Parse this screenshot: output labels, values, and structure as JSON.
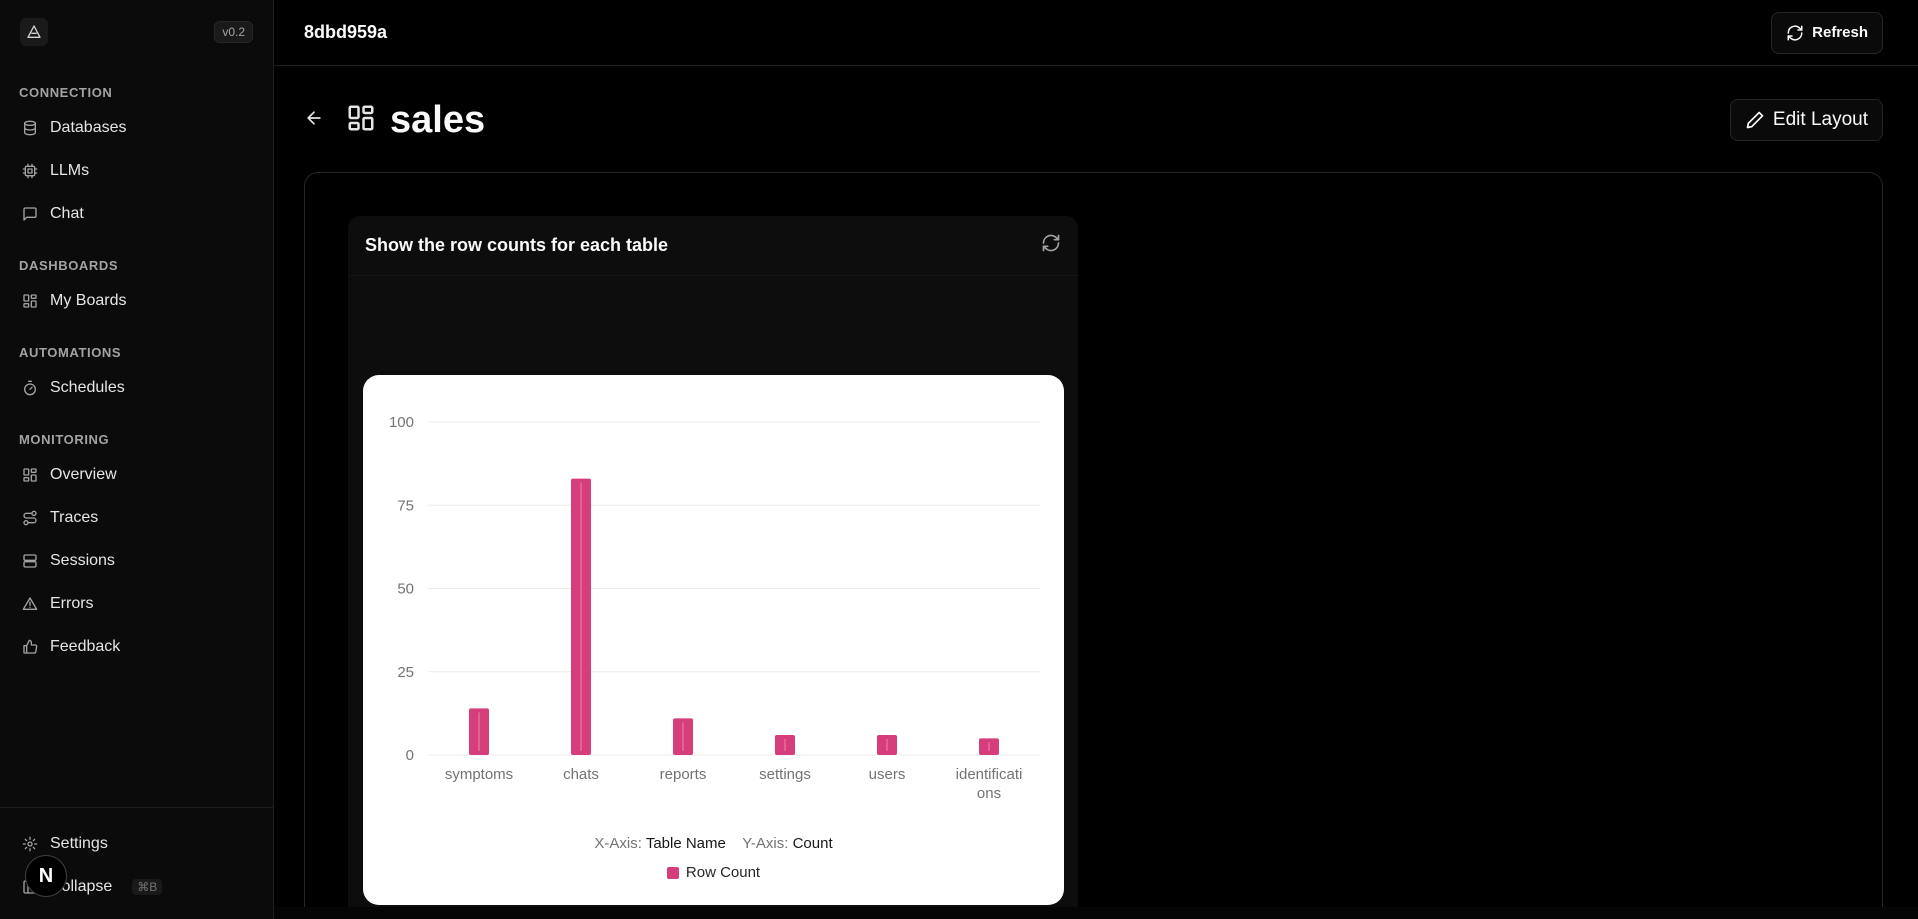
{
  "sidebar": {
    "version": "v0.2",
    "sections": {
      "connection": "CONNECTION",
      "dashboards": "DASHBOARDS",
      "automations": "AUTOMATIONS",
      "monitoring": "MONITORING"
    },
    "items": {
      "databases": "Databases",
      "llms": "LLMs",
      "chat": "Chat",
      "my_boards": "My Boards",
      "schedules": "Schedules",
      "overview": "Overview",
      "traces": "Traces",
      "sessions": "Sessions",
      "errors": "Errors",
      "feedback": "Feedback"
    },
    "settings": "Settings",
    "collapse": "Collapse",
    "collapse_shortcut": "⌘B",
    "badge": "N"
  },
  "topbar": {
    "title": "8dbd959a",
    "refresh_label": "Refresh"
  },
  "page": {
    "title": "sales",
    "edit_layout_label": "Edit Layout"
  },
  "widget": {
    "title": "Show the row counts for each table",
    "x_axis_label": "X-Axis:",
    "x_axis_value": "Table Name",
    "y_axis_label": "Y-Axis:",
    "y_axis_value": "Count"
  },
  "colors": {
    "bar": "#d63d7b",
    "accent_bg": "#000000"
  },
  "chart_data": {
    "type": "bar",
    "categories": [
      "symptoms",
      "chats",
      "reports",
      "settings",
      "users",
      "identifications"
    ],
    "series": [
      {
        "name": "Row Count",
        "values": [
          14,
          83,
          11,
          6,
          6,
          5
        ]
      }
    ],
    "ylim": [
      0,
      100
    ],
    "yticks": [
      0,
      25,
      50,
      75,
      100
    ],
    "grid": true,
    "legend": "bottom"
  }
}
